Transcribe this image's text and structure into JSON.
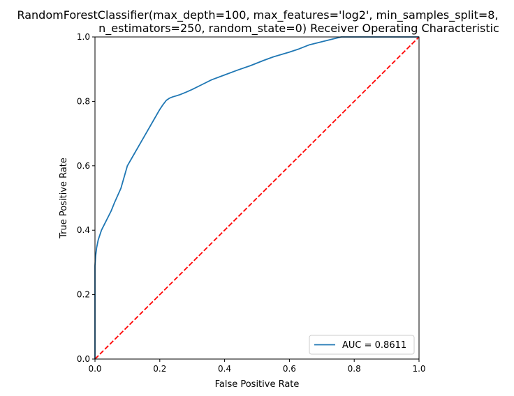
{
  "chart_data": {
    "type": "line",
    "title_lines": [
      "RandomForestClassifier(max_depth=100, max_features='log2', min_samples_split=8,",
      "n_estimators=250, random_state=0) Receiver Operating Characteristic"
    ],
    "xlabel": "False Positive Rate",
    "ylabel": "True Positive Rate",
    "xlim": [
      0.0,
      1.0
    ],
    "ylim": [
      0.0,
      1.0
    ],
    "xticks": [
      "0.0",
      "0.2",
      "0.4",
      "0.6",
      "0.8",
      "1.0"
    ],
    "yticks": [
      "0.0",
      "0.2",
      "0.4",
      "0.6",
      "0.8",
      "1.0"
    ],
    "grid": false,
    "legend_position": "lower-right",
    "series": [
      {
        "name": "AUC = 0.8611",
        "color": "#1f77b4",
        "style": "solid",
        "x": [
          0.0,
          0.0,
          0.002,
          0.005,
          0.01,
          0.02,
          0.03,
          0.04,
          0.05,
          0.06,
          0.08,
          0.1,
          0.12,
          0.14,
          0.16,
          0.18,
          0.2,
          0.21,
          0.22,
          0.23,
          0.24,
          0.26,
          0.28,
          0.3,
          0.33,
          0.36,
          0.4,
          0.44,
          0.48,
          0.52,
          0.55,
          0.6,
          0.63,
          0.66,
          0.7,
          0.74,
          0.76,
          0.8,
          0.85,
          0.9,
          0.95,
          1.0
        ],
        "y": [
          0.0,
          0.29,
          0.32,
          0.345,
          0.37,
          0.4,
          0.42,
          0.44,
          0.46,
          0.485,
          0.53,
          0.6,
          0.635,
          0.67,
          0.705,
          0.74,
          0.775,
          0.79,
          0.803,
          0.81,
          0.814,
          0.82,
          0.828,
          0.837,
          0.852,
          0.867,
          0.882,
          0.897,
          0.911,
          0.927,
          0.938,
          0.953,
          0.963,
          0.975,
          0.985,
          0.995,
          1.0,
          1.0,
          1.0,
          1.0,
          1.0,
          1.0
        ]
      },
      {
        "name": "",
        "color": "#ff0000",
        "style": "dashed",
        "x": [
          0.0,
          1.0
        ],
        "y": [
          0.0,
          1.0
        ]
      }
    ]
  }
}
